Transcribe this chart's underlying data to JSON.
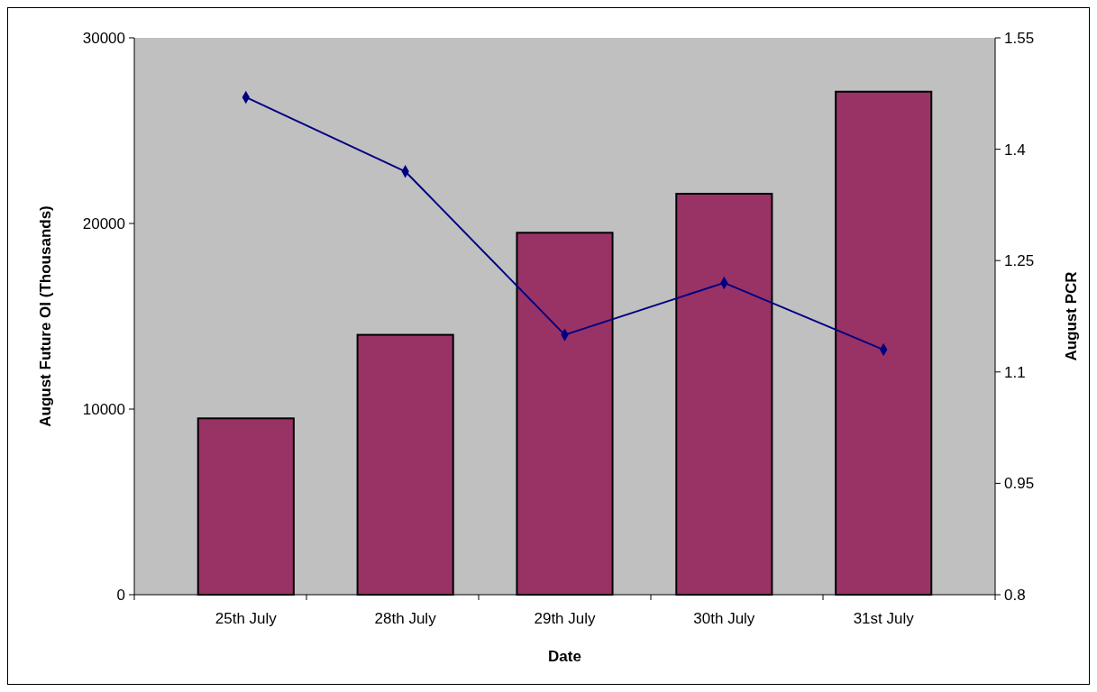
{
  "chart_data": {
    "type": "bar",
    "xlabel": "Date",
    "ylabel": "August Future OI (Thousands)",
    "y2label": "August PCR",
    "categories": [
      "25th July",
      "28th July",
      "29th July",
      "30th July",
      "31st July"
    ],
    "series": [
      {
        "color": "#993366",
        "values": [
          9500,
          14000,
          19500,
          21600,
          27100
        ]
      },
      {
        "type": "line",
        "axis": "y2",
        "color": "#000080",
        "values": [
          1.47,
          1.37,
          1.15,
          1.22,
          1.13
        ],
        "marker": "diamond"
      }
    ],
    "ylim": [
      0,
      30000
    ],
    "yticks": [
      0,
      10000,
      20000,
      30000
    ],
    "y2lim": [
      0.8,
      1.55
    ],
    "y2ticks": [
      0.8,
      0.95,
      1.1,
      1.25,
      1.4,
      1.55
    ],
    "grid": false
  }
}
